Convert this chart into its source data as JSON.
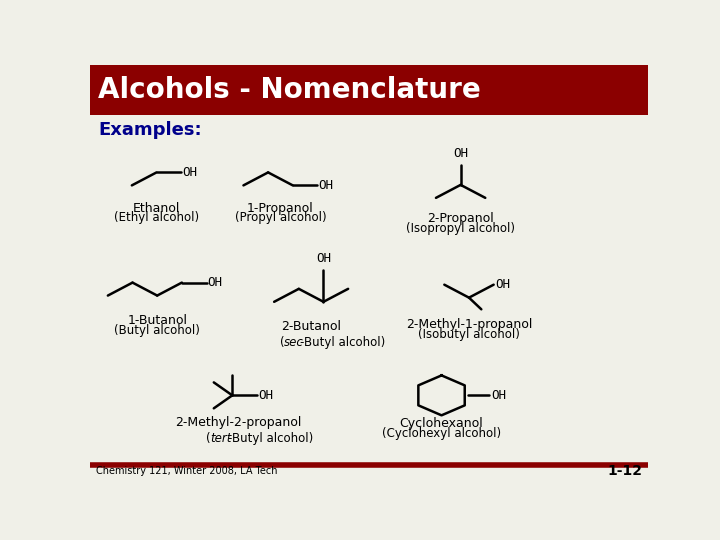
{
  "title": "Alcohols - Nomenclature",
  "subtitle": "Examples:",
  "background_color": "#f0f0e8",
  "title_bg_color": "#8b0000",
  "title_text_color": "#ffffff",
  "subtitle_color": "#00008b",
  "body_text_color": "#000000",
  "footer_text": "Chemistry 121, Winter 2008, LA Tech",
  "page_num": "1-12",
  "border_color": "#8b0000"
}
